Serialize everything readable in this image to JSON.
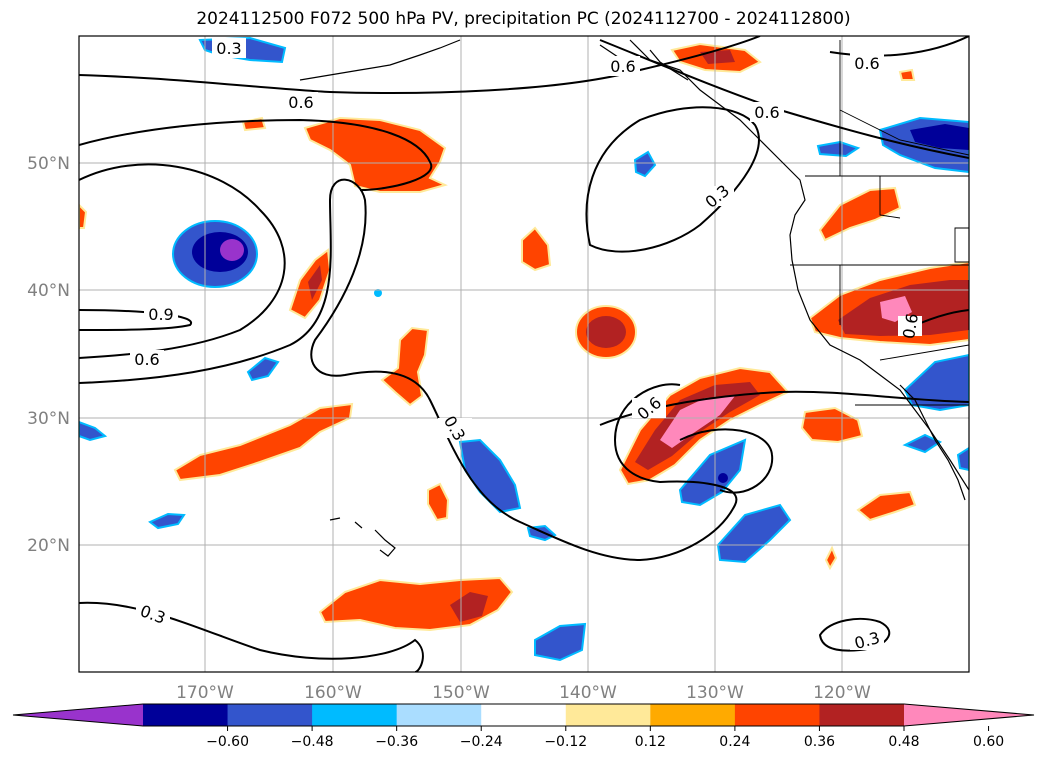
{
  "title": "2024112500 F072 500 hPa PV, precipitation PC (2024112700 - 2024112800)",
  "map": {
    "lon_ticks": [
      "170°W",
      "160°W",
      "150°W",
      "140°W",
      "130°W",
      "120°W"
    ],
    "lat_ticks": [
      "50°N",
      "40°N",
      "30°N",
      "20°N"
    ],
    "contour_labels": [
      "0.3",
      "0.6",
      "0.6",
      "0.6",
      "0.6",
      "0.3",
      "0.9",
      "0.6",
      "0.3",
      "0.6",
      "0.6",
      "0.3",
      "0.3"
    ]
  },
  "colorbar": {
    "colors": [
      "#9933cc",
      "#000099",
      "#3355cc",
      "#00bbff",
      "#aaddff",
      "#ffffff",
      "#ffe999",
      "#ffaa00",
      "#ff4400",
      "#b22222",
      "#ff88bb"
    ],
    "labels": [
      "−0.60",
      "−0.48",
      "−0.36",
      "−0.24",
      "−0.12",
      "0.12",
      "0.24",
      "0.36",
      "0.48",
      "0.60"
    ]
  }
}
